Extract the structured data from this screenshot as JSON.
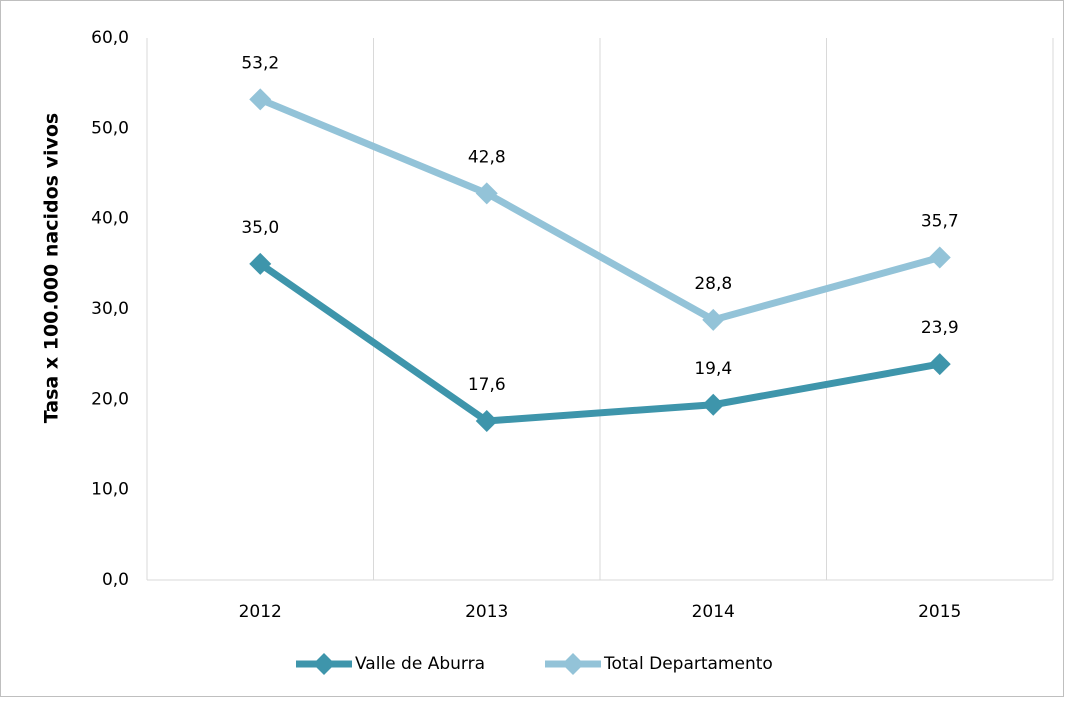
{
  "chart_data": {
    "type": "line",
    "y_label": "Tasa x 100.000 nacidos vivos",
    "categories": [
      "2012",
      "2013",
      "2014",
      "2015"
    ],
    "series": [
      {
        "name": "Valle de Aburra",
        "color": "#3e95ab",
        "values": [
          35.0,
          17.6,
          19.4,
          23.9
        ],
        "value_labels": [
          "35,0",
          "17,6",
          "19,4",
          "23,9"
        ]
      },
      {
        "name": "Total Departamento",
        "color": "#93c3d8",
        "values": [
          53.2,
          42.8,
          28.8,
          35.7
        ],
        "value_labels": [
          "53,2",
          "42,8",
          "28,8",
          "35,7"
        ]
      }
    ],
    "ylim": [
      0,
      60
    ],
    "yticks": [
      {
        "value": 0,
        "label": "0,0"
      },
      {
        "value": 10,
        "label": "10,0"
      },
      {
        "value": 20,
        "label": "20,0"
      },
      {
        "value": 30,
        "label": "30,0"
      },
      {
        "value": 40,
        "label": "40,0"
      },
      {
        "value": 50,
        "label": "50,0"
      },
      {
        "value": 60,
        "label": "60,0"
      }
    ],
    "legend": "bottom"
  }
}
